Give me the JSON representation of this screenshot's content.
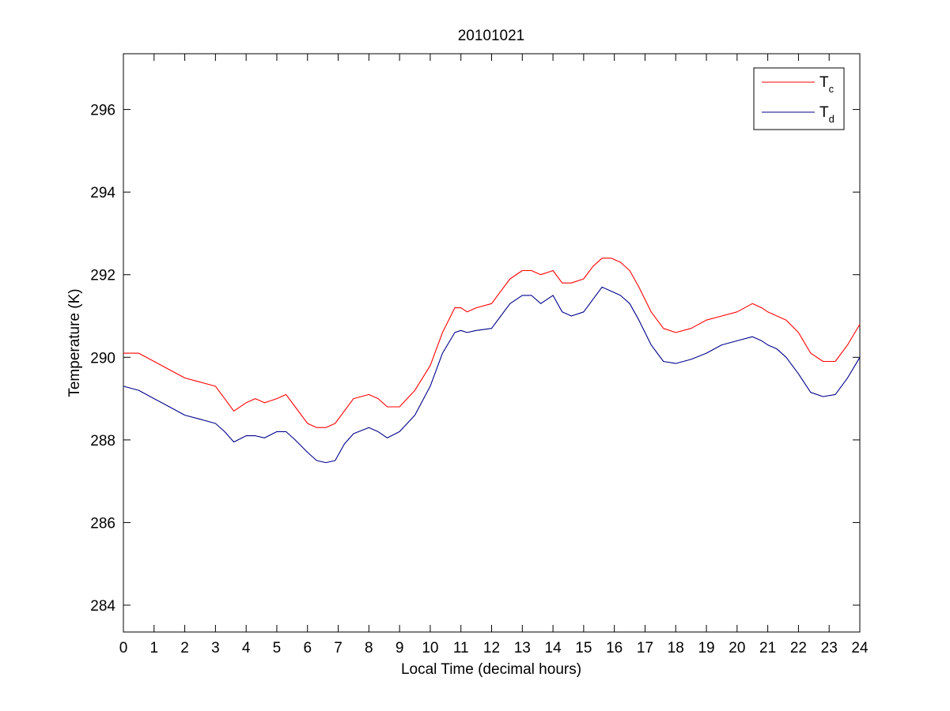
{
  "chart_data": {
    "type": "line",
    "title": "20101021",
    "xlabel": "Local Time (decimal hours)",
    "ylabel": "Temperature (K)",
    "xlim": [
      0,
      24
    ],
    "ylim": [
      283.35,
      297.35
    ],
    "x_ticks": [
      0,
      1,
      2,
      3,
      4,
      5,
      6,
      7,
      8,
      9,
      10,
      11,
      12,
      13,
      14,
      15,
      16,
      17,
      18,
      19,
      20,
      21,
      22,
      23,
      24
    ],
    "y_ticks": [
      284,
      286,
      288,
      290,
      292,
      294,
      296
    ],
    "grid": false,
    "legend_position": "top-right",
    "series": [
      {
        "name": "T",
        "subscript": "c",
        "color": "#ff0000",
        "x": [
          0,
          0.5,
          1,
          1.5,
          2,
          2.5,
          3,
          3.3,
          3.6,
          4,
          4.3,
          4.6,
          5,
          5.3,
          5.6,
          6,
          6.3,
          6.6,
          6.9,
          7.2,
          7.5,
          8,
          8.3,
          8.6,
          9,
          9.5,
          10,
          10.4,
          10.8,
          11,
          11.2,
          11.5,
          12,
          12.3,
          12.6,
          13,
          13.3,
          13.6,
          14,
          14.3,
          14.6,
          15,
          15.3,
          15.6,
          15.9,
          16.2,
          16.5,
          16.8,
          17.2,
          17.6,
          18,
          18.5,
          19,
          19.5,
          20,
          20.5,
          20.8,
          21,
          21.3,
          21.6,
          22,
          22.4,
          22.8,
          23.2,
          23.6,
          24
        ],
        "y": [
          290.1,
          290.1,
          289.9,
          289.7,
          289.5,
          289.4,
          289.3,
          289.0,
          288.7,
          288.9,
          289.0,
          288.9,
          289.0,
          289.1,
          288.8,
          288.4,
          288.3,
          288.3,
          288.4,
          288.7,
          289.0,
          289.1,
          289.0,
          288.8,
          288.8,
          289.2,
          289.8,
          290.6,
          291.2,
          291.2,
          291.1,
          291.2,
          291.3,
          291.6,
          291.9,
          292.1,
          292.1,
          292.0,
          292.1,
          291.8,
          291.8,
          291.9,
          292.2,
          292.4,
          292.4,
          292.3,
          292.1,
          291.7,
          291.1,
          290.7,
          290.6,
          290.7,
          290.9,
          291.0,
          291.1,
          291.3,
          291.2,
          291.1,
          291.0,
          290.9,
          290.6,
          290.1,
          289.9,
          289.9,
          290.3,
          290.8
        ]
      },
      {
        "name": "T",
        "subscript": "d",
        "color": "#00008b",
        "x": [
          0,
          0.5,
          1,
          1.5,
          2,
          2.5,
          3,
          3.3,
          3.6,
          4,
          4.3,
          4.6,
          5,
          5.3,
          5.6,
          6,
          6.3,
          6.6,
          6.9,
          7.2,
          7.5,
          8,
          8.3,
          8.6,
          9,
          9.5,
          10,
          10.4,
          10.8,
          11,
          11.2,
          11.5,
          12,
          12.3,
          12.6,
          13,
          13.3,
          13.6,
          14,
          14.3,
          14.6,
          15,
          15.3,
          15.6,
          15.9,
          16.2,
          16.5,
          16.8,
          17.2,
          17.6,
          18,
          18.5,
          19,
          19.5,
          20,
          20.5,
          20.8,
          21,
          21.3,
          21.6,
          22,
          22.4,
          22.8,
          23.2,
          23.6,
          24
        ],
        "y": [
          289.3,
          289.2,
          289.0,
          288.8,
          288.6,
          288.5,
          288.4,
          288.2,
          287.95,
          288.1,
          288.1,
          288.05,
          288.2,
          288.2,
          288.0,
          287.7,
          287.5,
          287.45,
          287.5,
          287.9,
          288.15,
          288.3,
          288.2,
          288.05,
          288.2,
          288.6,
          289.3,
          290.1,
          290.6,
          290.65,
          290.6,
          290.65,
          290.7,
          291.0,
          291.3,
          291.5,
          291.5,
          291.3,
          291.5,
          291.1,
          291.0,
          291.1,
          291.4,
          291.7,
          291.6,
          291.5,
          291.3,
          290.9,
          290.3,
          289.9,
          289.85,
          289.95,
          290.1,
          290.3,
          290.4,
          290.5,
          290.4,
          290.3,
          290.2,
          290.0,
          289.6,
          289.15,
          289.05,
          289.1,
          289.5,
          290.0
        ]
      }
    ]
  }
}
